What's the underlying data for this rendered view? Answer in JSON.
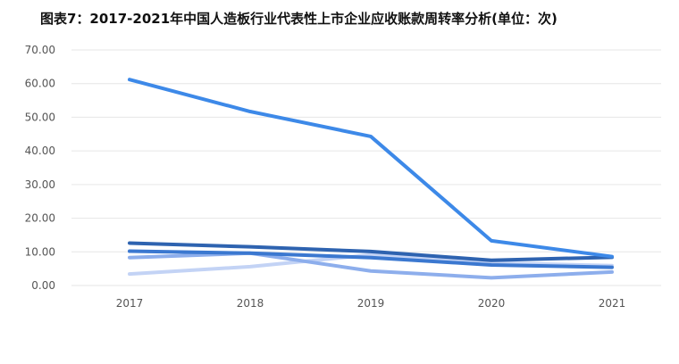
{
  "chart_data": {
    "type": "line",
    "title": "图表7：2017-2021年中国人造板行业代表性上市企业应收账款周转率分析(单位：次)",
    "categories": [
      "2017",
      "2018",
      "2019",
      "2020",
      "2021"
    ],
    "ylim": [
      0,
      70
    ],
    "yticks": [
      "0.00",
      "10.00",
      "20.00",
      "30.00",
      "40.00",
      "50.00",
      "60.00",
      "70.00"
    ],
    "grid": true,
    "series": [
      {
        "color": "#3D89E8",
        "values": [
          61.2,
          51.7,
          44.3,
          13.3,
          8.6
        ]
      },
      {
        "color": "#2E63B0",
        "values": [
          12.6,
          11.5,
          10.1,
          7.5,
          8.4
        ]
      },
      {
        "color": "#3B78D0",
        "values": [
          10.2,
          9.6,
          8.3,
          6.1,
          5.4
        ]
      },
      {
        "color": "#8DAEEC",
        "values": [
          8.3,
          9.6,
          4.3,
          2.3,
          4.0
        ]
      },
      {
        "color": "#C3D3F5",
        "values": [
          3.4,
          5.6,
          9.1,
          6.7,
          5.9
        ]
      }
    ]
  }
}
